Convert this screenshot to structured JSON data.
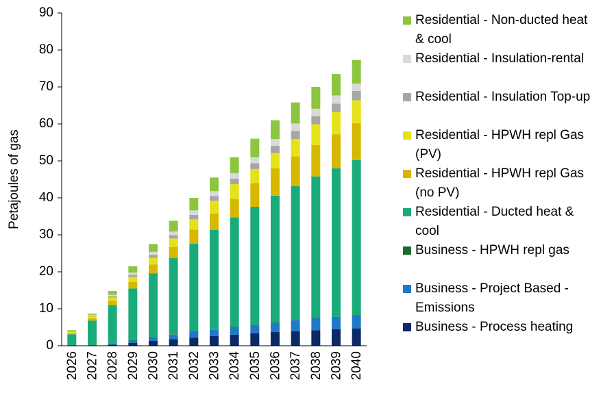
{
  "chart_data": {
    "type": "bar",
    "stacked": true,
    "y_label": "Petajoules of gas",
    "categories": [
      "2026",
      "2027",
      "2028",
      "2029",
      "2030",
      "2031",
      "2032",
      "2033",
      "2034",
      "2035",
      "2036",
      "2037",
      "2038",
      "2039",
      "2040"
    ],
    "ylim": [
      0,
      90
    ],
    "yticks": [
      0,
      10,
      20,
      30,
      40,
      50,
      60,
      70,
      80,
      90
    ],
    "series": [
      {
        "name": "Business - Process heating",
        "color": "#0b2a63",
        "values": [
          0,
          0,
          0.3,
          0.8,
          1.3,
          1.8,
          2.2,
          2.6,
          3,
          3.4,
          3.7,
          3.9,
          4.2,
          4.5,
          4.7
        ]
      },
      {
        "name": "Business - Project Based - Emissions",
        "color": "#1f78c8",
        "values": [
          0,
          0,
          0.2,
          0.6,
          0.9,
          1.2,
          1.5,
          1.7,
          2,
          2.3,
          2.4,
          3,
          3.2,
          3.2,
          3.6
        ]
      },
      {
        "name": "Business - HPWH repl gas",
        "color": "#1b6b2c",
        "values": [
          0,
          0,
          0.1,
          0.1,
          0.1,
          0.1,
          0.1,
          0.1,
          0.1,
          0.1,
          0.1,
          0.1,
          0.1,
          0.1,
          0.1
        ]
      },
      {
        "name": "Residential - Ducted heat & cool",
        "color": "#1aab7a",
        "values": [
          3.1,
          6.8,
          10.4,
          14.0,
          17.3,
          20.6,
          23.8,
          26.9,
          29.6,
          31.8,
          34.4,
          36.2,
          38.3,
          40.2,
          41.8
        ]
      },
      {
        "name": "Residential - HPWH repl Gas (no PV)",
        "color": "#d6b800",
        "values": [
          0.3,
          0.6,
          1.2,
          1.8,
          2.4,
          3,
          3.8,
          4.5,
          5,
          6.4,
          7.4,
          8,
          8.5,
          9.2,
          10
        ]
      },
      {
        "name": "Residential - HPWH repl Gas (PV)",
        "color": "#e6e21a",
        "values": [
          0.3,
          0.6,
          0.8,
          1.3,
          1.8,
          2.3,
          2.8,
          3.4,
          4,
          3.8,
          4.1,
          4.7,
          5.6,
          6,
          6.2
        ]
      },
      {
        "name": "Residential - Insulation Top-up",
        "color": "#a6a6a6",
        "values": [
          0.1,
          0.2,
          0.4,
          0.6,
          0.8,
          0.9,
          1.2,
          1.3,
          1.5,
          1.6,
          2,
          2.2,
          2.2,
          2.3,
          2.5
        ]
      },
      {
        "name": "Residential - Insulation-rental",
        "color": "#d9d9d9",
        "values": [
          0.1,
          0.2,
          0.4,
          0.6,
          0.8,
          1,
          1.2,
          1.3,
          1.5,
          1.6,
          1.8,
          2,
          2,
          2.2,
          2
        ]
      },
      {
        "name": "Residential - Non-ducted heat & cool",
        "color": "#8cc63f",
        "values": [
          0.3,
          0.3,
          1.0,
          1.7,
          2.1,
          2.9,
          3.4,
          3.7,
          4.3,
          5,
          5.1,
          5.7,
          5.9,
          5.8,
          6.4
        ]
      }
    ]
  }
}
